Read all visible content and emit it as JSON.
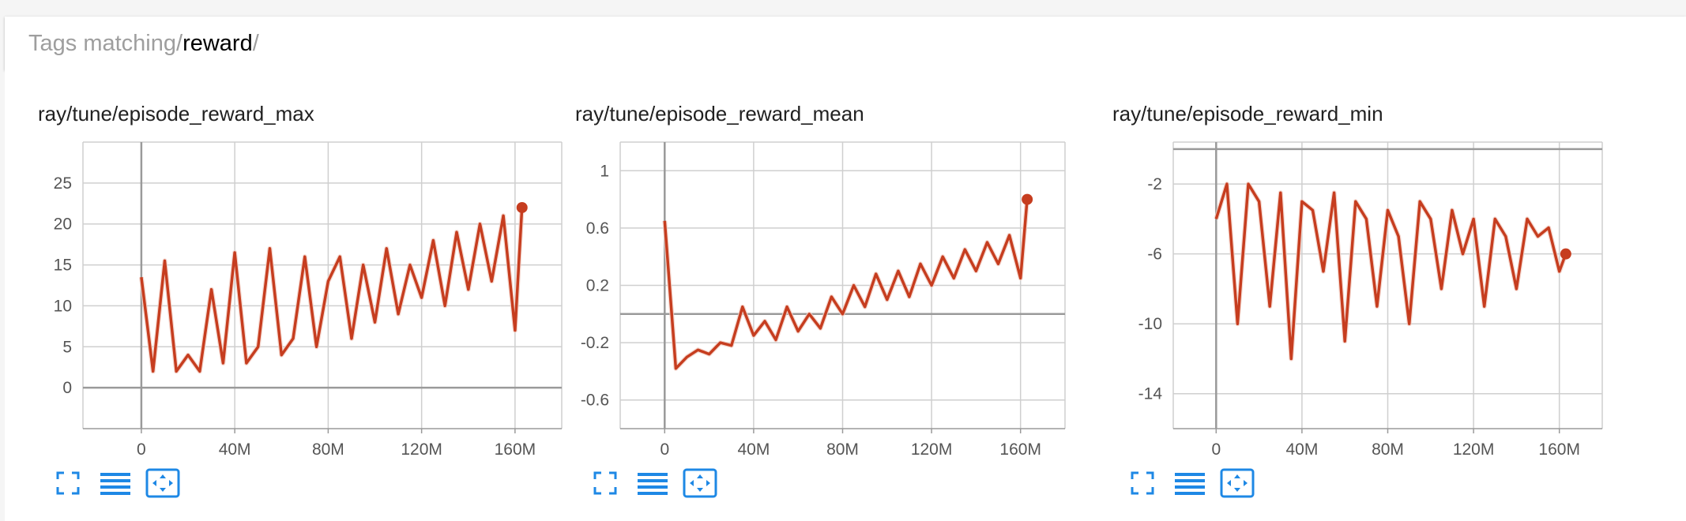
{
  "search": {
    "prefix": "Tags matching ",
    "slash_open": "/",
    "term": "reward",
    "slash_close": "/"
  },
  "colors": {
    "line": "#c63d1f",
    "raw_line": "#f2cfc6",
    "grid": "#cfcfcf",
    "axis": "#9a9a9a",
    "icon": "#1e88e5"
  },
  "actions": [
    "fullscreen-icon",
    "data-lines-icon",
    "fit-domain-icon"
  ],
  "chart_data": [
    {
      "type": "line",
      "title": "ray/tune/episode_reward_max",
      "xlabel": "",
      "ylabel": "",
      "xlim": [
        -25000000,
        180000000
      ],
      "ylim": [
        -5,
        30
      ],
      "x_ticks": [
        0,
        40000000,
        80000000,
        120000000,
        160000000
      ],
      "x_tick_labels": [
        "0",
        "40M",
        "80M",
        "120M",
        "160M"
      ],
      "y_ticks": [
        0,
        5,
        10,
        15,
        20,
        25
      ],
      "y_tick_labels": [
        "0",
        "5",
        "10",
        "15",
        "20",
        "25"
      ],
      "grid": true,
      "x": [
        0,
        5000000,
        10000000,
        15000000,
        20000000,
        25000000,
        30000000,
        35000000,
        40000000,
        45000000,
        50000000,
        55000000,
        60000000,
        65000000,
        70000000,
        75000000,
        80000000,
        85000000,
        90000000,
        95000000,
        100000000,
        105000000,
        110000000,
        115000000,
        120000000,
        125000000,
        130000000,
        135000000,
        140000000,
        145000000,
        150000000,
        155000000,
        160000000,
        163000000
      ],
      "series": [
        {
          "values": [
            13.5,
            2,
            15.5,
            2,
            4,
            2,
            12,
            3,
            16.5,
            3,
            5,
            17,
            4,
            6,
            16,
            5,
            13,
            16,
            6,
            15,
            8,
            17,
            9,
            15,
            11,
            18,
            10,
            19,
            12,
            20,
            13,
            21,
            7,
            22
          ]
        }
      ],
      "last_value": 22
    },
    {
      "type": "line",
      "title": "ray/tune/episode_reward_mean",
      "xlabel": "",
      "ylabel": "",
      "xlim": [
        -20000000,
        180000000
      ],
      "ylim": [
        -0.8,
        1.2
      ],
      "x_ticks": [
        0,
        40000000,
        80000000,
        120000000,
        160000000
      ],
      "x_tick_labels": [
        "0",
        "40M",
        "80M",
        "120M",
        "160M"
      ],
      "y_ticks": [
        -0.6,
        -0.2,
        0.2,
        0.6,
        1
      ],
      "y_tick_labels": [
        "-0.6",
        "-0.2",
        "0.2",
        "0.6",
        "1"
      ],
      "grid": true,
      "x": [
        0,
        5000000,
        10000000,
        15000000,
        20000000,
        25000000,
        30000000,
        35000000,
        40000000,
        45000000,
        50000000,
        55000000,
        60000000,
        65000000,
        70000000,
        75000000,
        80000000,
        85000000,
        90000000,
        95000000,
        100000000,
        105000000,
        110000000,
        115000000,
        120000000,
        125000000,
        130000000,
        135000000,
        140000000,
        145000000,
        150000000,
        155000000,
        160000000,
        163000000
      ],
      "series": [
        {
          "values": [
            0.65,
            -0.38,
            -0.3,
            -0.25,
            -0.28,
            -0.2,
            -0.22,
            0.05,
            -0.15,
            -0.05,
            -0.18,
            0.05,
            -0.12,
            0.0,
            -0.1,
            0.12,
            0.0,
            0.2,
            0.05,
            0.28,
            0.1,
            0.3,
            0.12,
            0.35,
            0.2,
            0.4,
            0.25,
            0.45,
            0.3,
            0.5,
            0.35,
            0.55,
            0.25,
            0.8
          ]
        }
      ],
      "last_value": 0.8
    },
    {
      "type": "line",
      "title": "ray/tune/episode_reward_min",
      "xlabel": "",
      "ylabel": "",
      "xlim": [
        -20000000,
        180000000
      ],
      "ylim": [
        -16,
        0.4
      ],
      "x_ticks": [
        0,
        40000000,
        80000000,
        120000000,
        160000000
      ],
      "x_tick_labels": [
        "0",
        "40M",
        "80M",
        "120M",
        "160M"
      ],
      "y_ticks": [
        -14,
        -10,
        -6,
        -2
      ],
      "y_tick_labels": [
        "-14",
        "-10",
        "-6",
        "-2"
      ],
      "grid": true,
      "x": [
        0,
        5000000,
        10000000,
        15000000,
        20000000,
        25000000,
        30000000,
        35000000,
        40000000,
        45000000,
        50000000,
        55000000,
        60000000,
        65000000,
        70000000,
        75000000,
        80000000,
        85000000,
        90000000,
        95000000,
        100000000,
        105000000,
        110000000,
        115000000,
        120000000,
        125000000,
        130000000,
        135000000,
        140000000,
        145000000,
        150000000,
        155000000,
        160000000,
        163000000
      ],
      "series": [
        {
          "values": [
            -4,
            -2,
            -10,
            -2,
            -3,
            -9,
            -2.5,
            -12,
            -3,
            -3.5,
            -7,
            -2.5,
            -11,
            -3,
            -4,
            -9,
            -3.5,
            -5,
            -10,
            -3,
            -4,
            -8,
            -3.5,
            -6,
            -4,
            -9,
            -4,
            -5,
            -8,
            -4,
            -5,
            -4.5,
            -7,
            -6
          ]
        }
      ],
      "last_value": -6
    }
  ]
}
